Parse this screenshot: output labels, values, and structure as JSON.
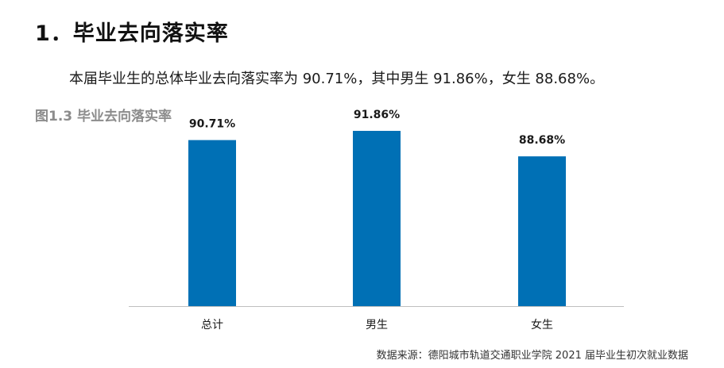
{
  "section": {
    "heading": "1．毕业去向落实率",
    "paragraph": "本届毕业生的总体毕业去向落实率为 90.71%，其中男生 91.86%，女生 88.68%。",
    "figure_caption": "图1.3 毕业去向落实率"
  },
  "chart_data": {
    "type": "bar",
    "title": "图1.3 毕业去向落实率",
    "categories": [
      "总计",
      "男生",
      "女生"
    ],
    "values": [
      90.71,
      91.86,
      88.68
    ],
    "data_labels": [
      "90.71%",
      "91.86%",
      "88.68%"
    ],
    "unit": "%",
    "ylim": [
      0,
      100
    ],
    "grid": false,
    "legend": "none",
    "bar_color": "#0070b5",
    "axis_color": "#bfbfbf"
  },
  "source_note": "数据来源：德阳城市轨道交通职业学院 2021 届毕业生初次就业数据"
}
